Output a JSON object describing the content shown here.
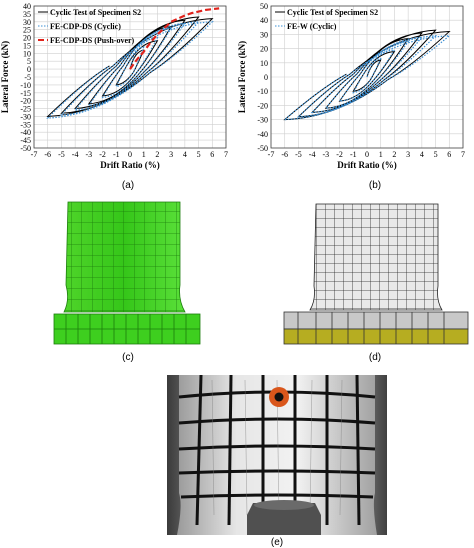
{
  "panels": {
    "a": {
      "caption": "(a)"
    },
    "b": {
      "caption": "(b)"
    },
    "c": {
      "caption": "(c)"
    },
    "d": {
      "caption": "(d)"
    },
    "e": {
      "caption": "(e)"
    }
  },
  "chart_data": [
    {
      "type": "line",
      "panel": "(a)",
      "xlabel": "Drift Ratio (%)",
      "ylabel": "Lateral Force (kN)",
      "xlim": [
        -7,
        7
      ],
      "ylim": [
        -50,
        40
      ],
      "xticks": [
        -7,
        -6,
        -5,
        -4,
        -3,
        -2,
        -1,
        0,
        1,
        2,
        3,
        4,
        5,
        6,
        7
      ],
      "yticks": [
        40,
        35,
        30,
        25,
        20,
        15,
        10,
        5,
        0,
        -5,
        -10,
        -15,
        -20,
        -25,
        -30,
        -35,
        -40,
        -45,
        -50
      ],
      "grid": true,
      "legend_position": "top-left",
      "series": [
        {
          "name": "Cyclic Test of Specimen S2",
          "color": "#000000",
          "style": "solid",
          "peaks": [
            [
              1,
              12
            ],
            [
              2,
              18
            ],
            [
              3,
              27
            ],
            [
              4,
              31
            ],
            [
              5,
              33
            ],
            [
              6,
              32
            ],
            [
              -1,
              -10
            ],
            [
              -2,
              -17
            ],
            [
              -3,
              -22
            ],
            [
              -4,
              -25
            ],
            [
              -5,
              -28
            ],
            [
              -6,
              -30
            ]
          ]
        },
        {
          "name": "FE-CDP-DS (Cyclic)",
          "color": "#3a8fd4",
          "style": "dotted",
          "peaks": [
            [
              1,
              14
            ],
            [
              2,
              20
            ],
            [
              3,
              26
            ],
            [
              4,
              29
            ],
            [
              5,
              30
            ],
            [
              6,
              30
            ],
            [
              -1,
              -11
            ],
            [
              -2,
              -18
            ],
            [
              -3,
              -23
            ],
            [
              -4,
              -26
            ],
            [
              -5,
              -29
            ],
            [
              -6,
              -31
            ]
          ]
        },
        {
          "name": "FE-CDP-DS (Push-over)",
          "color": "#e0231c",
          "style": "dashed",
          "x": [
            0,
            0.5,
            1,
            1.5,
            2,
            2.5,
            3,
            3.5,
            4,
            4.5,
            5,
            5.5,
            6,
            6.5
          ],
          "y": [
            0,
            6,
            11,
            17,
            22,
            26,
            30,
            32,
            34,
            35.5,
            36.5,
            37.5,
            38,
            38.5
          ]
        }
      ]
    },
    {
      "type": "line",
      "panel": "(b)",
      "xlabel": "Drift Ratio (%)",
      "ylabel": "Lateral Force (kN)",
      "xlim": [
        -7,
        7
      ],
      "ylim": [
        -50,
        50
      ],
      "xticks": [
        -7,
        -6,
        -5,
        -4,
        -3,
        -2,
        -1,
        0,
        1,
        2,
        3,
        4,
        5,
        6,
        7
      ],
      "yticks": [
        50,
        40,
        30,
        20,
        10,
        0,
        -10,
        -20,
        -30,
        -40,
        -50
      ],
      "grid": true,
      "legend_position": "top-left",
      "series": [
        {
          "name": "Cyclic Test of Specimen S2",
          "color": "#000000",
          "style": "solid",
          "peaks": [
            [
              1,
              12
            ],
            [
              2,
              18
            ],
            [
              3,
              27
            ],
            [
              4,
              31
            ],
            [
              5,
              33
            ],
            [
              6,
              32
            ],
            [
              -1,
              -10
            ],
            [
              -2,
              -17
            ],
            [
              -3,
              -22
            ],
            [
              -4,
              -25
            ],
            [
              -5,
              -28
            ],
            [
              -6,
              -30
            ]
          ]
        },
        {
          "name": "FE-W (Cyclic)",
          "color": "#3a8fd4",
          "style": "dotted",
          "peaks": [
            [
              1,
              13
            ],
            [
              2,
              19
            ],
            [
              3,
              25
            ],
            [
              4,
              28
            ],
            [
              5,
              29
            ],
            [
              6,
              29
            ],
            [
              -1,
              -11
            ],
            [
              -2,
              -17
            ],
            [
              -3,
              -22
            ],
            [
              -4,
              -25
            ],
            [
              -5,
              -28
            ],
            [
              -6,
              -30
            ]
          ]
        }
      ]
    }
  ]
}
